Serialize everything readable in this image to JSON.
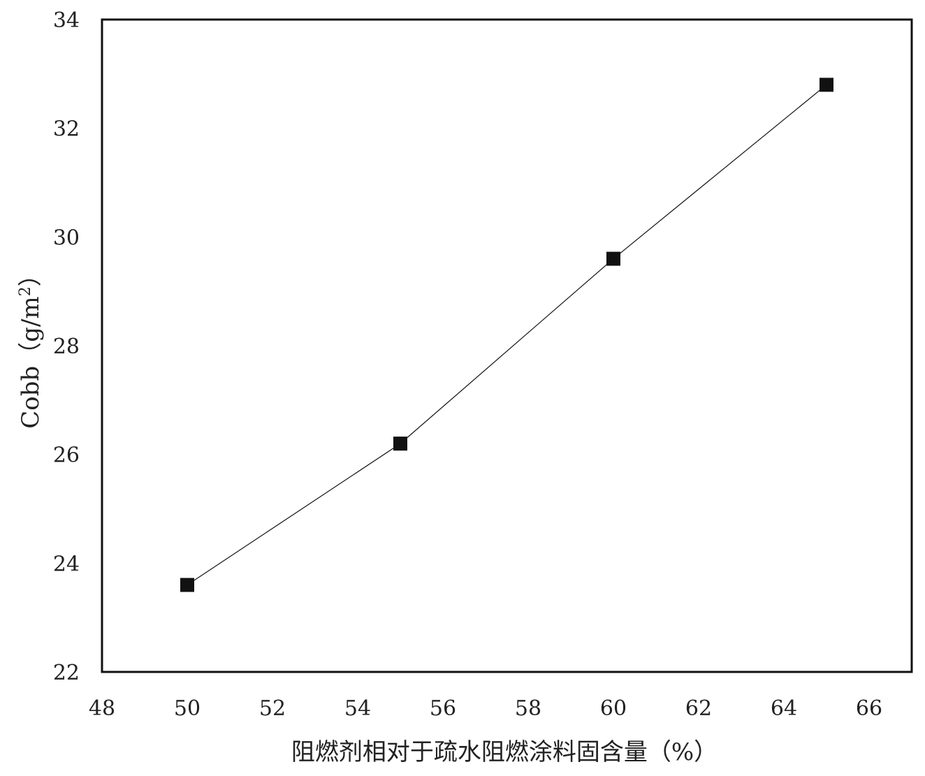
{
  "chart_data": {
    "type": "line",
    "title": "",
    "xlabel": "阻燃剂相对于疏水阻燃涂料固含量（%）",
    "ylabel": "Cobb（g/m²）",
    "ylabel_main": "Cobb（g/m",
    "ylabel_sup": "2",
    "ylabel_tail": "）",
    "xlim": [
      48,
      67
    ],
    "ylim": [
      22,
      34
    ],
    "xticks": [
      48,
      50,
      52,
      54,
      56,
      58,
      60,
      62,
      64,
      66
    ],
    "yticks": [
      22,
      24,
      26,
      28,
      30,
      32,
      34
    ],
    "grid": false,
    "legend": "none",
    "marker": "square",
    "series": [
      {
        "color": "#111111",
        "x": [
          50,
          55,
          60,
          65
        ],
        "y": [
          23.6,
          26.2,
          29.6,
          32.8
        ]
      }
    ]
  }
}
